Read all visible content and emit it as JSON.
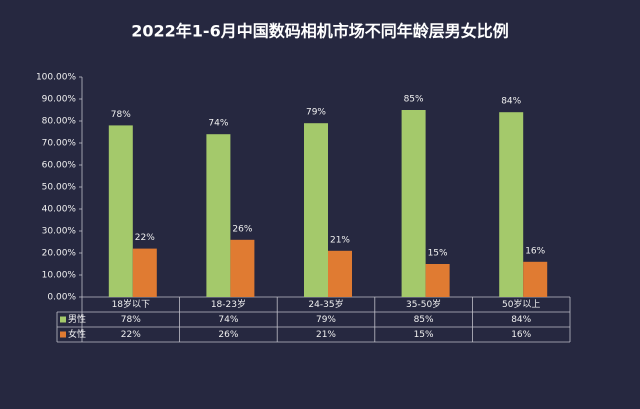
{
  "chart_data": {
    "type": "bar",
    "title": "2022年1-6月中国数码相机市场不同年龄层男女比例",
    "categories": [
      "18岁以下",
      "18-23岁",
      "24-35岁",
      "35-50岁",
      "50岁以上"
    ],
    "series": [
      {
        "name": "男性",
        "color": "#a4c96b",
        "values": [
          78,
          74,
          79,
          85,
          84
        ],
        "value_labels": [
          "78%",
          "74%",
          "79%",
          "85%",
          "84%"
        ]
      },
      {
        "name": "女性",
        "color": "#e07b32",
        "values": [
          22,
          26,
          21,
          15,
          16
        ],
        "value_labels": [
          "22%",
          "26%",
          "21%",
          "15%",
          "16%"
        ]
      }
    ],
    "ylim": [
      0,
      100
    ],
    "yticks": [
      {
        "value": 0,
        "label": "0.00%"
      },
      {
        "value": 10,
        "label": "10.00%"
      },
      {
        "value": 20,
        "label": "20.00%"
      },
      {
        "value": 30,
        "label": "30.00%"
      },
      {
        "value": 40,
        "label": "40.00%"
      },
      {
        "value": 50,
        "label": "50.00%"
      },
      {
        "value": 60,
        "label": "60.00%"
      },
      {
        "value": 70,
        "label": "70.00%"
      },
      {
        "value": 80,
        "label": "80.00%"
      },
      {
        "value": 90,
        "label": "90.00%"
      },
      {
        "value": 100,
        "label": "100.00%"
      }
    ]
  }
}
